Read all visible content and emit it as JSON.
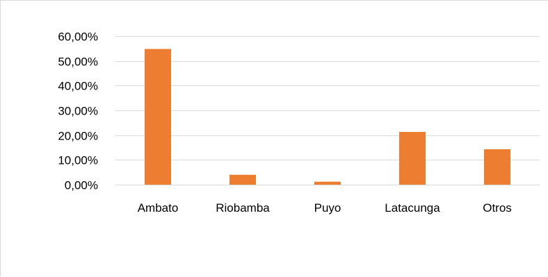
{
  "chart_data": {
    "type": "bar",
    "title": "",
    "xlabel": "",
    "ylabel": "",
    "categories": [
      "Ambato",
      "Riobamba",
      "Puyo",
      "Latacunga",
      "Otros"
    ],
    "values": [
      54.8,
      4.0,
      1.2,
      21.3,
      14.3
    ],
    "ylim": [
      0,
      60
    ],
    "yticks": [
      0,
      10,
      20,
      30,
      40,
      50,
      60
    ],
    "ytick_labels": [
      "0,00%",
      "10,00%",
      "20,00%",
      "30,00%",
      "40,00%",
      "50,00%",
      "60,00%"
    ],
    "bar_color": "#ED7D31",
    "grid_color": "#D9D9D9",
    "grid": true,
    "legend": "none"
  }
}
